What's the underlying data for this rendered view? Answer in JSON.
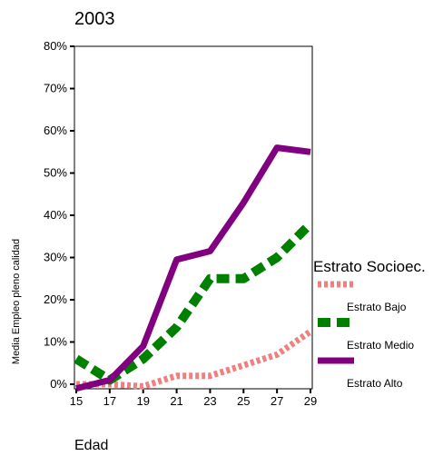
{
  "chart_data": {
    "type": "line",
    "title": "2003",
    "xlabel": "Edad",
    "ylabel": "Media Empleo pleno calidad",
    "x": [
      15,
      17,
      19,
      21,
      23,
      25,
      27,
      29
    ],
    "x_ticks": [
      "15",
      "17",
      "19",
      "21",
      "23",
      "25",
      "27",
      "29"
    ],
    "y_ticks": [
      "0%",
      "10%",
      "20%",
      "30%",
      "40%",
      "50%",
      "60%",
      "70%",
      "80%"
    ],
    "xlim": [
      15,
      29
    ],
    "ylim": [
      0,
      80
    ],
    "grid": false,
    "legend": {
      "title": "Estrato Socioec.",
      "placement": "right"
    },
    "series": [
      {
        "name": "Estrato Bajo",
        "color": "#f08080",
        "style": "dotted",
        "values": [
          0,
          0,
          -0.5,
          2,
          2,
          4.5,
          7,
          12.5
        ]
      },
      {
        "name": "Estrato Medio",
        "color": "#008000",
        "style": "dashed",
        "values": [
          6,
          1,
          6,
          13.5,
          25,
          25,
          30,
          38
        ]
      },
      {
        "name": "Estrato Alto",
        "color": "#800080",
        "style": "solid",
        "values": [
          -1,
          1,
          9,
          29.5,
          31.5,
          43,
          56,
          55
        ]
      }
    ]
  }
}
